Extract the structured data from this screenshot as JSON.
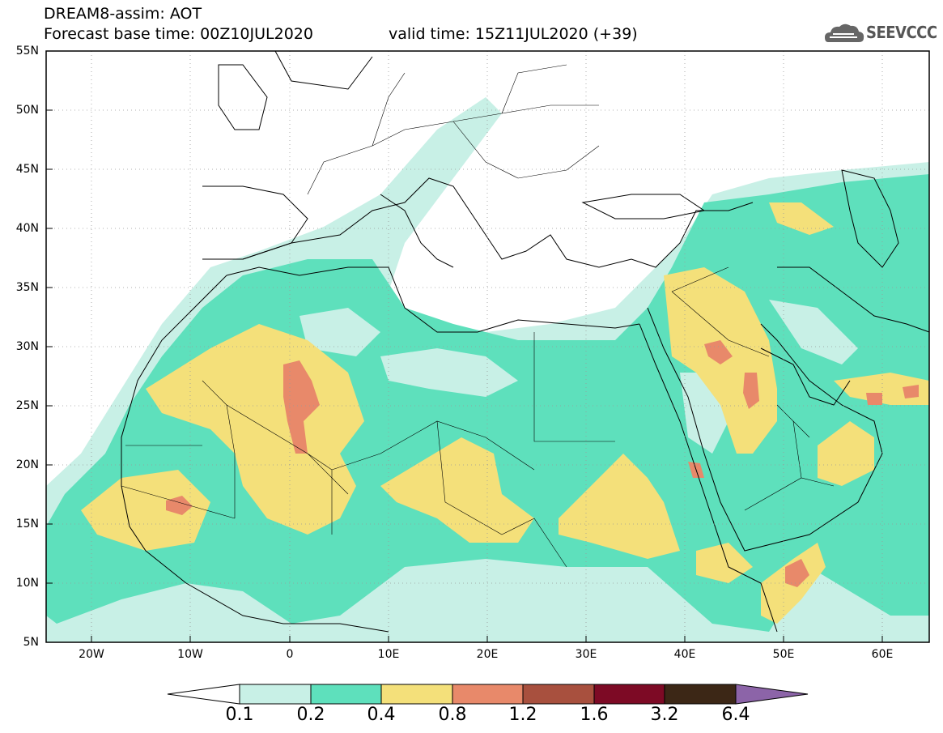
{
  "header": {
    "line1": "DREAM8-assim: AOT",
    "line2": "Forecast base time: 00Z10JUL2020",
    "line3": "valid time: 15Z11JUL2020 (+39)"
  },
  "logo": {
    "text": "SEEVCCC",
    "icon": "cloud-icon"
  },
  "axes": {
    "lat_labels": [
      "55N",
      "50N",
      "45N",
      "40N",
      "35N",
      "30N",
      "25N",
      "20N",
      "15N",
      "10N",
      "5N"
    ],
    "lon_labels": [
      "20W",
      "10W",
      "0",
      "10E",
      "20E",
      "30E",
      "40E",
      "50E",
      "60E"
    ],
    "lat_range": [
      5,
      55
    ],
    "lon_range": [
      -25,
      65
    ]
  },
  "colorbar": {
    "labels": [
      "0.1",
      "0.2",
      "0.4",
      "0.8",
      "1.2",
      "1.6",
      "3.2",
      "6.4"
    ],
    "colors": [
      "#ffffff",
      "#c8f0e6",
      "#5ee0bc",
      "#f4e07a",
      "#e8896a",
      "#a8503e",
      "#7d0a25",
      "#3c2716",
      "#8c64a8"
    ]
  }
}
